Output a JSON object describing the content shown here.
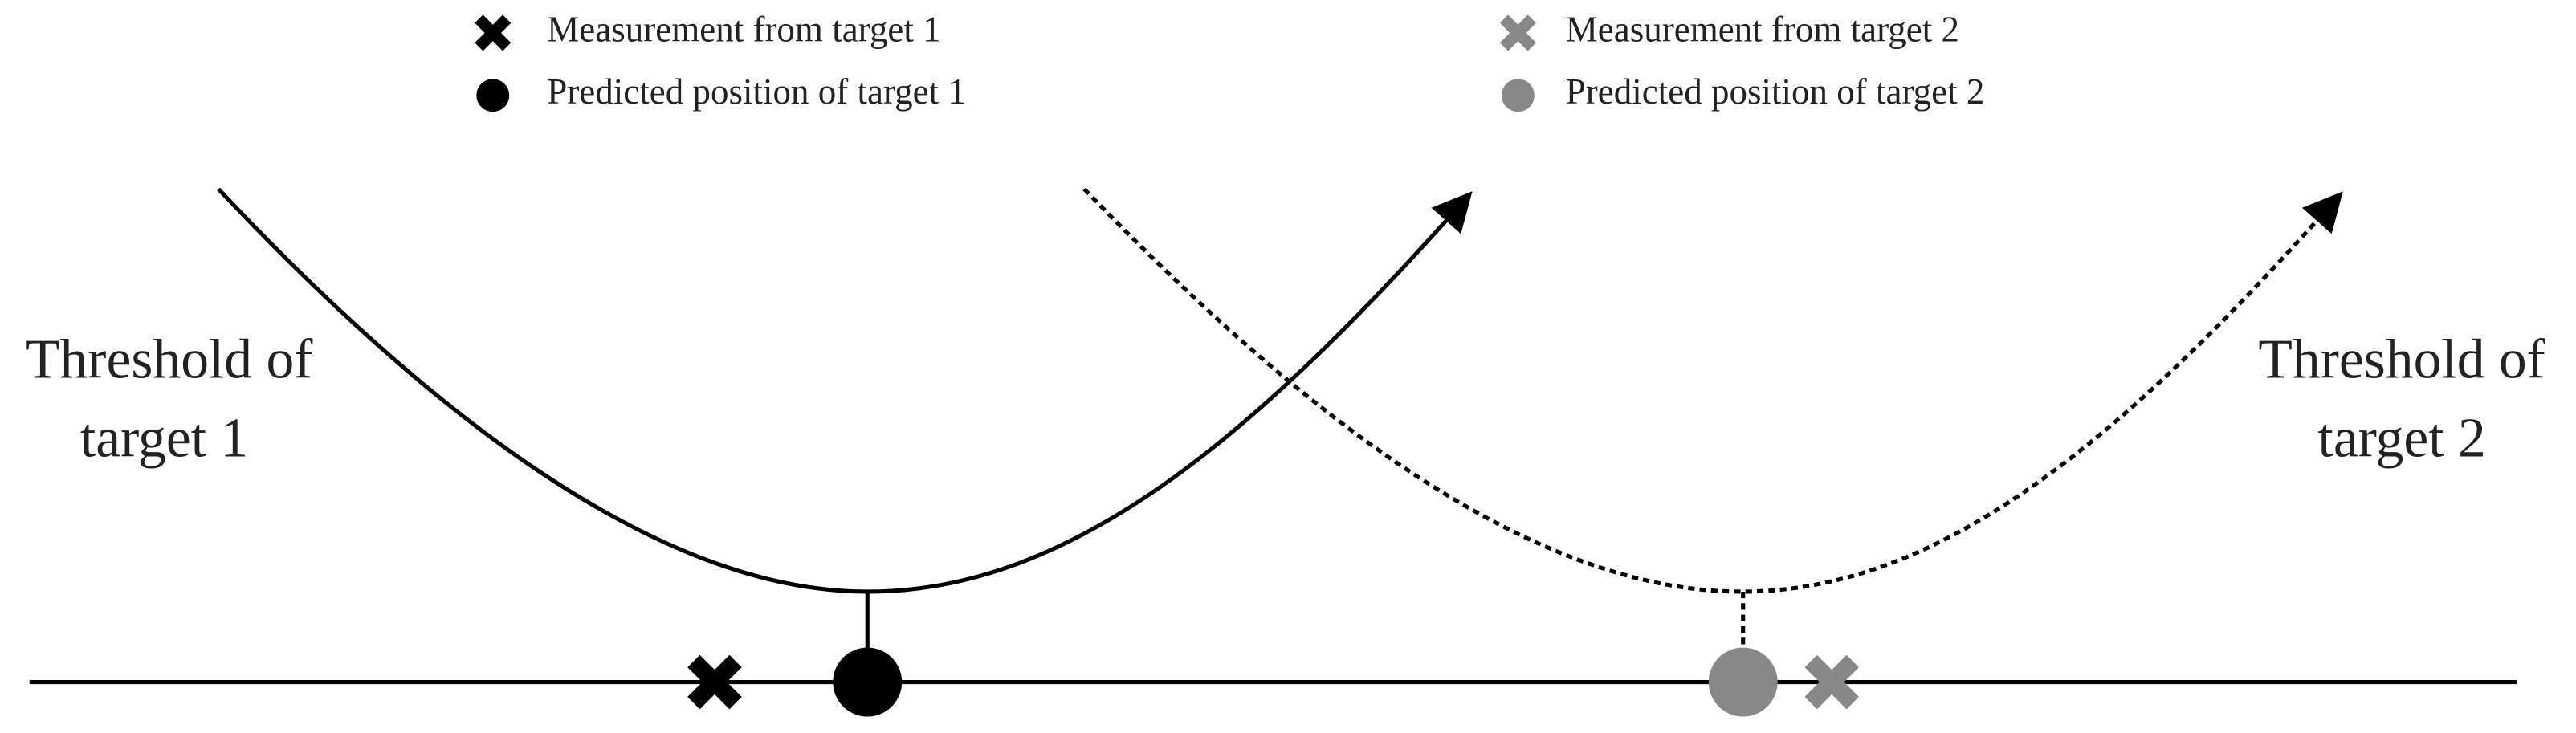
{
  "legend": [
    {
      "label": "Measurement from target 1"
    },
    {
      "label": "Predicted position of target 1"
    },
    {
      "label": "Measurement from target 2"
    },
    {
      "label": "Predicted position of target 2"
    }
  ],
  "annotations": [
    {
      "lines": [
        "Threshold of",
        "target 1"
      ]
    },
    {
      "lines": [
        "Threshold of",
        "target 2"
      ]
    }
  ]
}
